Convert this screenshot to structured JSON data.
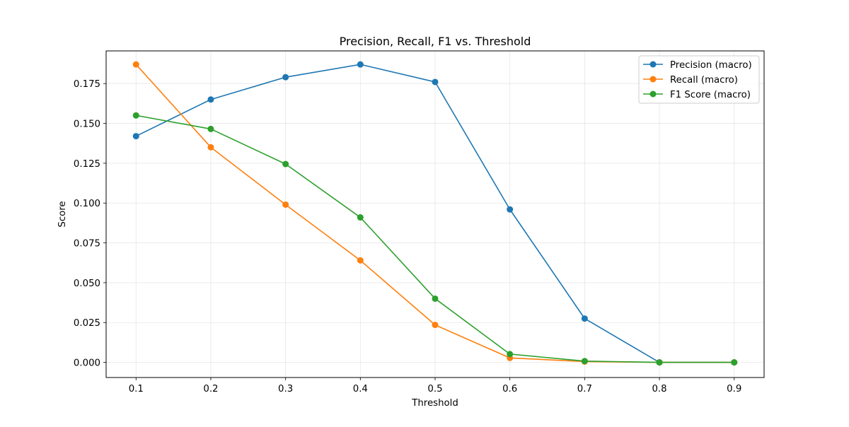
{
  "chart_data": {
    "type": "line",
    "title": "Precision, Recall, F1 vs. Threshold",
    "xlabel": "Threshold",
    "ylabel": "Score",
    "x": [
      0.1,
      0.2,
      0.3,
      0.4,
      0.5,
      0.6,
      0.7,
      0.8,
      0.9
    ],
    "x_ticks": [
      "0.1",
      "0.2",
      "0.3",
      "0.4",
      "0.5",
      "0.6",
      "0.7",
      "0.8",
      "0.9"
    ],
    "y_ticks": [
      "0.000",
      "0.025",
      "0.050",
      "0.075",
      "0.100",
      "0.125",
      "0.150",
      "0.175"
    ],
    "xlim": [
      0.06,
      0.94
    ],
    "ylim": [
      -0.0095,
      0.1955
    ],
    "grid": true,
    "legend_position": "top-right",
    "series": [
      {
        "name": "Precision (macro)",
        "color": "#1f77b4",
        "values": [
          0.142,
          0.165,
          0.179,
          0.187,
          0.176,
          0.096,
          0.0275,
          0.0,
          0.0
        ]
      },
      {
        "name": "Recall (macro)",
        "color": "#ff7f0e",
        "values": [
          0.187,
          0.135,
          0.099,
          0.064,
          0.0235,
          0.0028,
          0.0005,
          0.0,
          0.0
        ]
      },
      {
        "name": "F1 Score (macro)",
        "color": "#2ca02c",
        "values": [
          0.155,
          0.1465,
          0.1245,
          0.091,
          0.04,
          0.0052,
          0.0008,
          0.0,
          0.0
        ]
      }
    ]
  }
}
